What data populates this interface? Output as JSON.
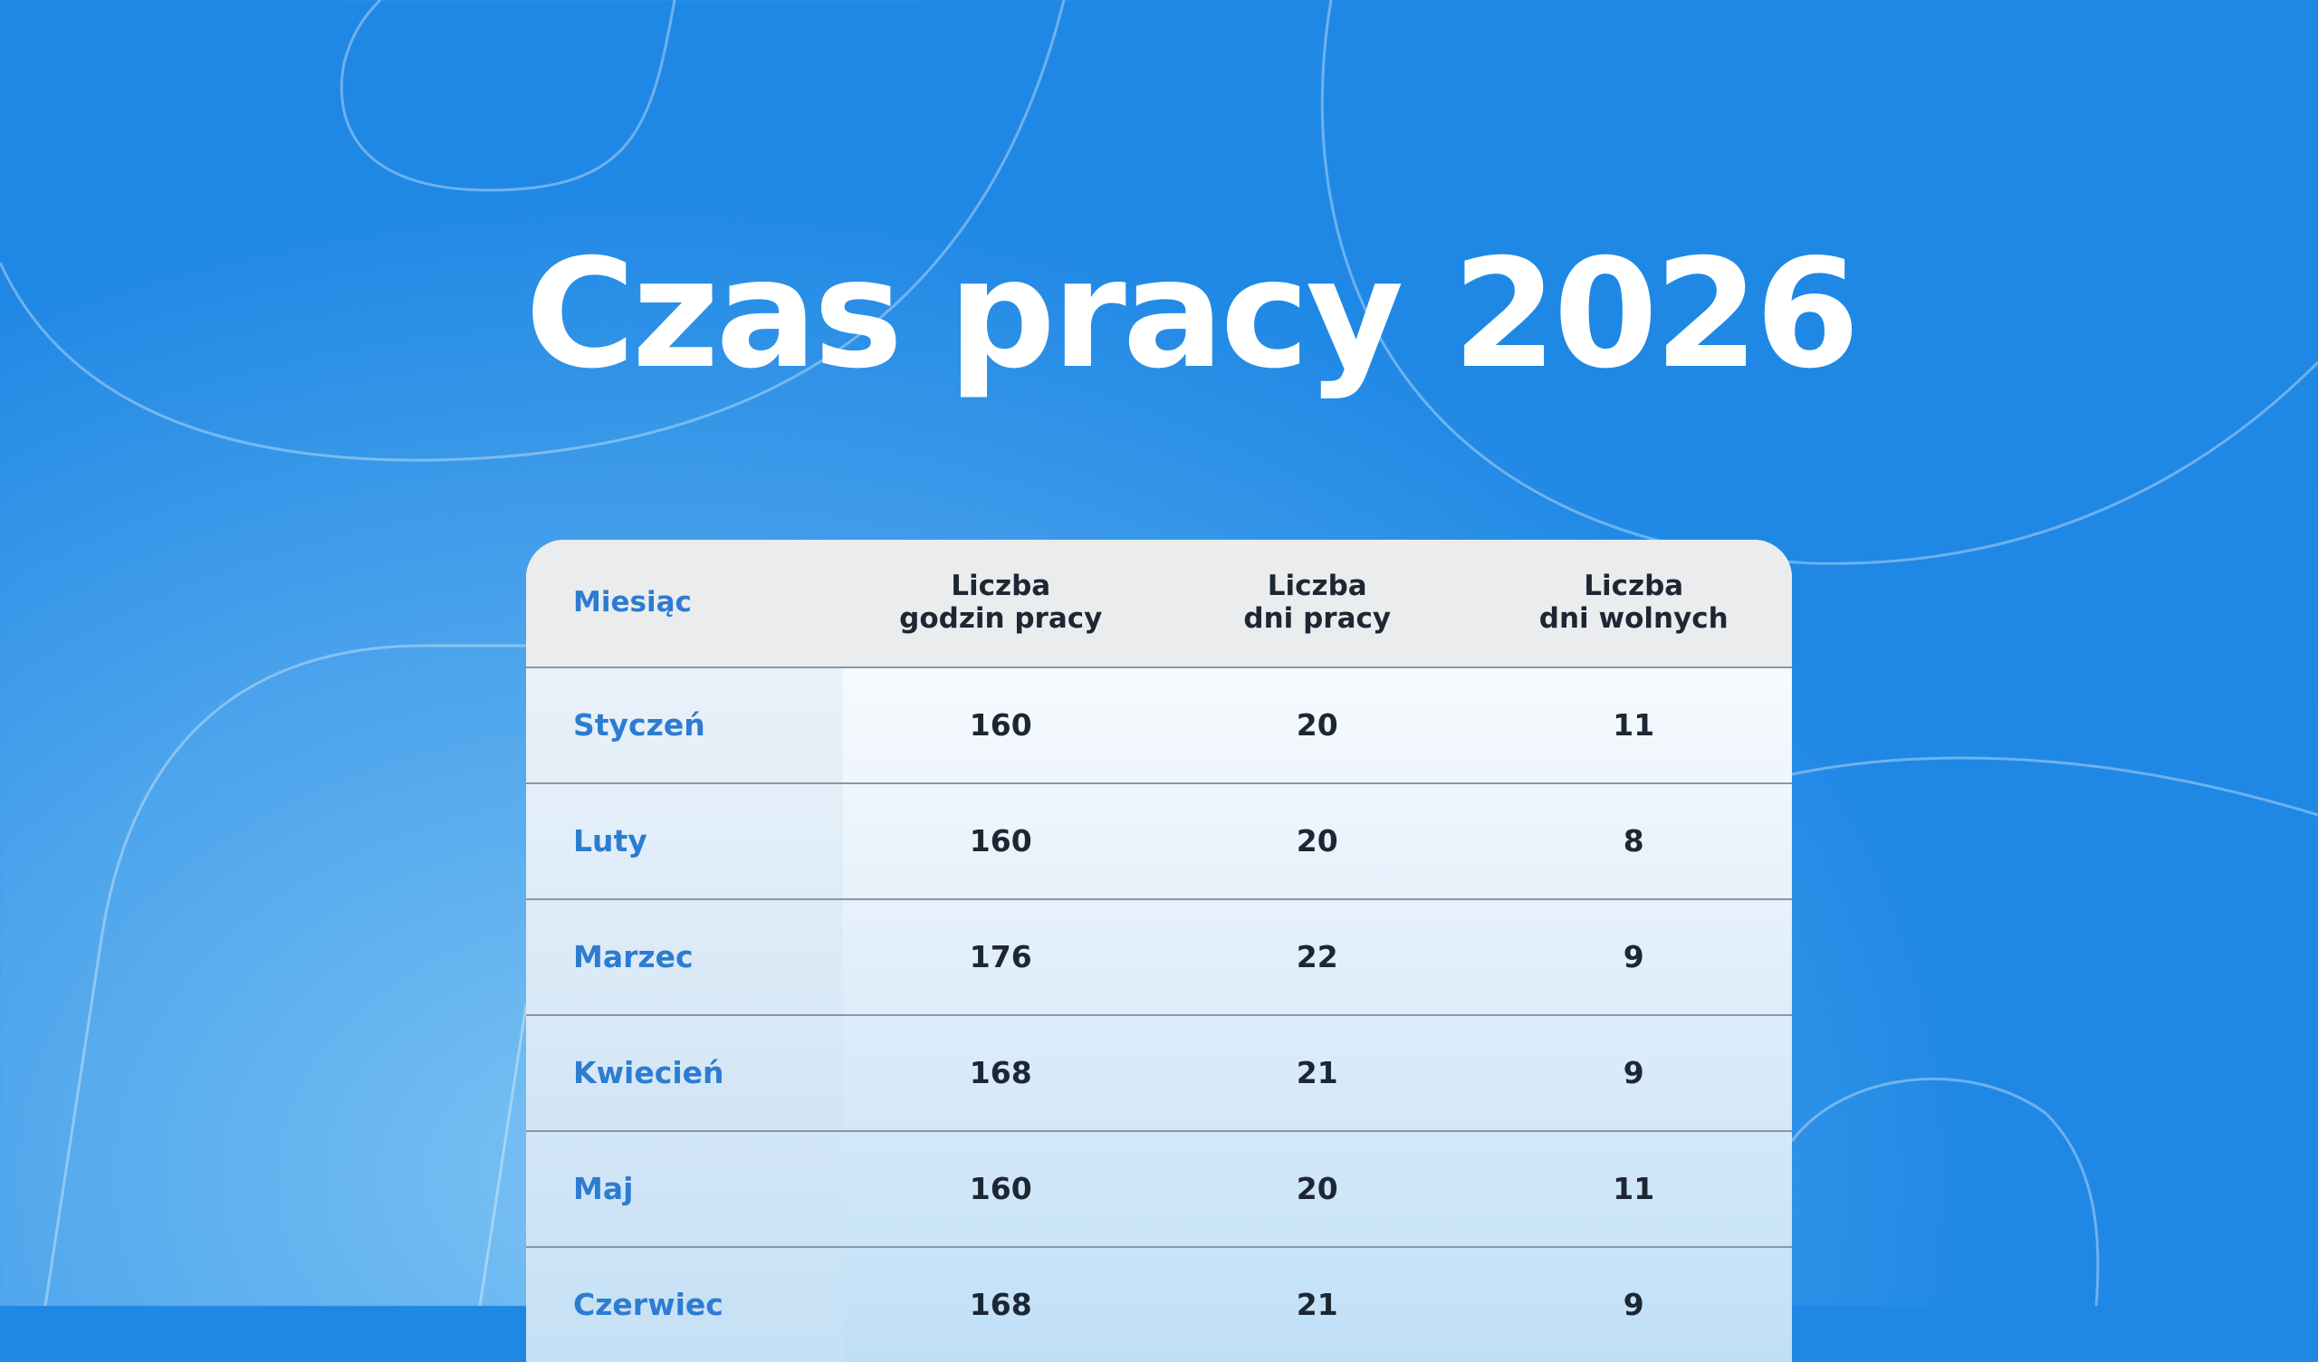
{
  "header": {
    "title": "Czas pracy",
    "year": "2026"
  },
  "table": {
    "header": [
      "Miesiąc",
      "Liczba\ngodzin pracy",
      "Liczba\ndni pracy",
      "Liczba\ndni wolnych"
    ],
    "rows": [
      [
        "Styczeń",
        160,
        20,
        11
      ],
      [
        "Luty",
        160,
        20,
        8
      ],
      [
        "Marzec",
        176,
        22,
        9
      ],
      [
        "Kwiecień",
        168,
        21,
        9
      ],
      [
        "Maj",
        160,
        20,
        11
      ],
      [
        "Czerwiec",
        168,
        21,
        9
      ]
    ]
  }
}
